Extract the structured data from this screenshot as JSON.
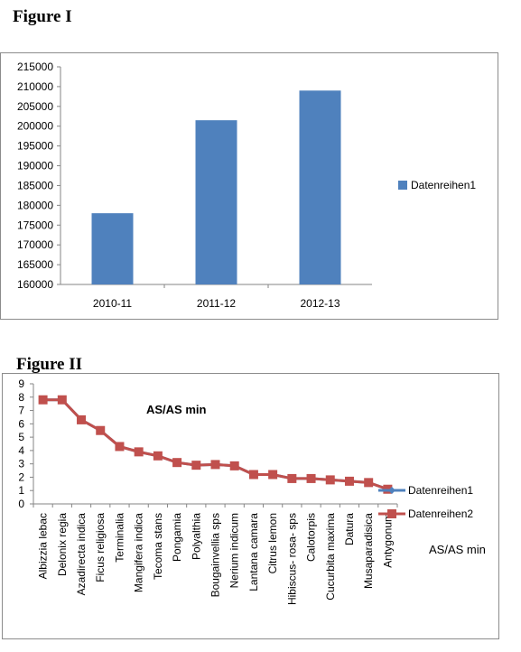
{
  "figure1": {
    "title": "Figure I"
  },
  "figure2": {
    "title": "Figure II"
  },
  "chart_data": [
    {
      "type": "bar",
      "categories": [
        "2010-11",
        "2011-12",
        "2012-13"
      ],
      "series": [
        {
          "name": "Datenreihen1",
          "values": [
            178000,
            201500,
            209000
          ]
        }
      ],
      "yticks": [
        "160000",
        "165000",
        "170000",
        "175000",
        "180000",
        "185000",
        "190000",
        "195000",
        "200000",
        "205000",
        "210000",
        "215000"
      ],
      "ylim": [
        160000,
        215000
      ],
      "legend": "right",
      "colors": {
        "bar": "#4F81BD"
      }
    },
    {
      "type": "line",
      "categories": [
        "Albizzia lebac",
        "Delonix regia",
        "Azadirecta indica",
        "Ficus religiosa",
        "Terminalia",
        "Mangifera indica",
        "Tecoma stans",
        "Pongamia",
        "Polyalthia",
        "Bougainvellia sps",
        "Nerium indicum",
        "Lantana camara",
        "Citrus lemon",
        "Hibiscus- rosa- sps",
        "Calotorpis",
        "Cucurbita maxima",
        "Datura",
        "Musaparadisica",
        "Antygonum"
      ],
      "series": [
        {
          "name": "Datenreihen1",
          "values": [
            7.8,
            7.8,
            6.3,
            5.5,
            4.3,
            3.9,
            3.6,
            3.1,
            2.9,
            2.95,
            2.85,
            2.2,
            2.2,
            1.9,
            1.9,
            1.8,
            1.7,
            1.6,
            1.1
          ]
        },
        {
          "name": "Datenreihen2",
          "values": [
            7.8,
            7.8,
            6.3,
            5.5,
            4.3,
            3.9,
            3.6,
            3.1,
            2.9,
            2.95,
            2.85,
            2.2,
            2.2,
            1.9,
            1.9,
            1.8,
            1.7,
            1.6,
            1.1
          ]
        }
      ],
      "annotation": "AS/AS min",
      "side_label": "AS/AS min",
      "yticks": [
        "0",
        "1",
        "2",
        "3",
        "4",
        "5",
        "6",
        "7",
        "8",
        "9"
      ],
      "ylim": [
        0,
        9
      ],
      "legend": "right",
      "colors": {
        "series1": "#4F81BD",
        "series2": "#C0504D"
      }
    }
  ]
}
